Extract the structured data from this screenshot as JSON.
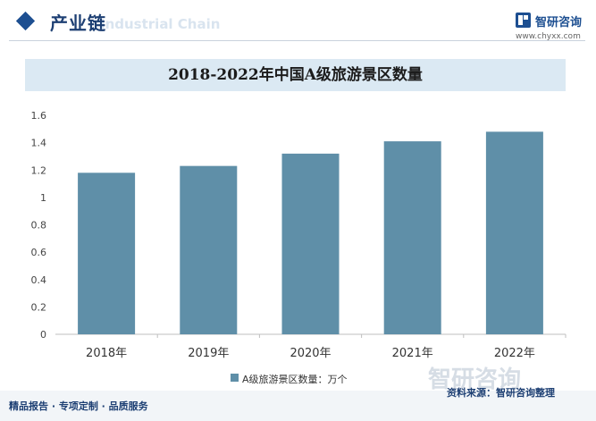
{
  "header": {
    "title": "产业链",
    "subtitle_watermark": "Industrial Chain"
  },
  "brand": {
    "name": "智研咨询",
    "url": "www.chyxx.com"
  },
  "chart_title": "2018-2022年中国A级旅游景区数量",
  "chart_data": {
    "type": "bar",
    "title": "2018-2022年中国A级旅游景区数量",
    "categories": [
      "2018年",
      "2019年",
      "2020年",
      "2021年",
      "2022年"
    ],
    "series": [
      {
        "name": "A级旅游景区数量：万个",
        "values": [
          1.18,
          1.23,
          1.32,
          1.41,
          1.48
        ]
      }
    ],
    "y_ticks": [
      "0",
      "0.2",
      "0.4",
      "0.6",
      "0.8",
      "1",
      "1.2",
      "1.4",
      "1.6"
    ],
    "ylim": [
      0,
      1.6
    ],
    "grid": false,
    "legend_position": "bottom",
    "bar_color": "#5f8fa8"
  },
  "watermark": "智研咨询",
  "footer": {
    "left": "精品报告 · 专项定制 · 品质服务",
    "source": "资料来源：智研咨询整理"
  }
}
